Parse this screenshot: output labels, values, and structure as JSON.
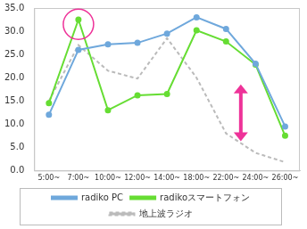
{
  "chart_data": {
    "type": "line",
    "categories": [
      "5:00~",
      "7:00~",
      "10:00~",
      "12:00~",
      "14:00~",
      "18:00~",
      "22:00~",
      "24:00~",
      "26:00~"
    ],
    "series": [
      {
        "name": "radiko PC",
        "color": "#6fa8dc",
        "marker": "circle",
        "line_style": "solid",
        "values": [
          12.0,
          26.0,
          27.2,
          27.5,
          29.5,
          33.0,
          30.5,
          23.0,
          9.5
        ]
      },
      {
        "name": "radikoスマートフォン",
        "color": "#66dd33",
        "marker": "circle",
        "line_style": "solid",
        "values": [
          14.5,
          32.5,
          13.0,
          16.2,
          16.5,
          30.2,
          27.8,
          22.8,
          7.5
        ]
      },
      {
        "name": "地上波ラジオ",
        "color": "#bbbbbb",
        "marker": "none",
        "line_style": "dashed",
        "values": [
          15.0,
          27.0,
          21.5,
          19.8,
          28.5,
          20.0,
          8.0,
          3.8,
          1.8
        ]
      }
    ],
    "ylim": [
      0,
      35
    ],
    "yticks": [
      {
        "value": 0,
        "label": "0.0"
      },
      {
        "value": 5,
        "label": "5.0"
      },
      {
        "value": 10,
        "label": "10.0"
      },
      {
        "value": 15,
        "label": "15.0"
      },
      {
        "value": 20,
        "label": "20.0"
      },
      {
        "value": 25,
        "label": "25.0"
      },
      {
        "value": 30,
        "label": "30.0"
      },
      {
        "value": 35,
        "label": "35.0"
      }
    ],
    "grid": false,
    "legend": "bottom"
  }
}
